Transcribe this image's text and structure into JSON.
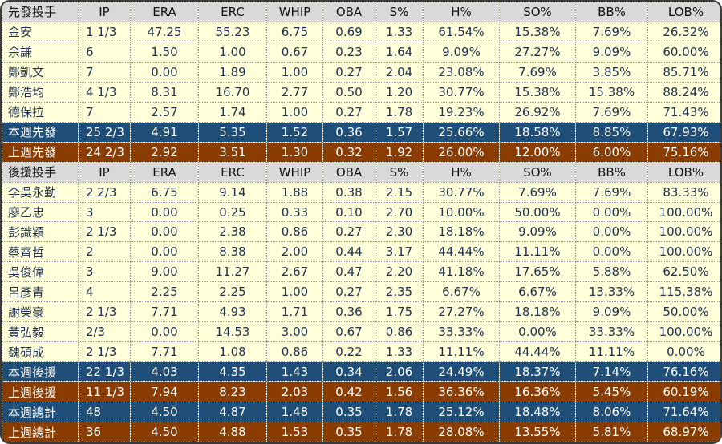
{
  "colors": {
    "page_background": "#ffffff",
    "table_background": "#ffffd9",
    "header_background": "#d9d9d9",
    "this_week_row": "#1f4e79",
    "last_week_row": "#8b3c00",
    "summary_text": "#ffffff",
    "body_text": "#1f3050",
    "grid_line": "#98987e",
    "outer_border": "#3a3a3a"
  },
  "chart_data": {
    "type": "table",
    "title": "",
    "sections": [
      {
        "name": "starting-pitchers",
        "header": [
          "先發投手",
          "IP",
          "ERA",
          "ERC",
          "WHIP",
          "OBA",
          "S%",
          "H%",
          "SO%",
          "BB%",
          "LOB%"
        ],
        "rows": [
          {
            "type": "normal",
            "cells": [
              "金安",
              "1 1/3",
              "47.25",
              "55.23",
              "6.75",
              "0.69",
              "1.33",
              "61.54%",
              "15.38%",
              "7.69%",
              "26.32%"
            ]
          },
          {
            "type": "normal",
            "cells": [
              "余謙",
              "6",
              "1.50",
              "1.00",
              "0.67",
              "0.23",
              "1.64",
              "9.09%",
              "27.27%",
              "9.09%",
              "60.00%"
            ]
          },
          {
            "type": "normal",
            "cells": [
              "鄭凱文",
              "7",
              "0.00",
              "1.89",
              "1.00",
              "0.27",
              "2.04",
              "23.08%",
              "7.69%",
              "3.85%",
              "85.71%"
            ]
          },
          {
            "type": "normal",
            "cells": [
              "鄭浩均",
              "4 1/3",
              "8.31",
              "16.70",
              "2.77",
              "0.50",
              "1.20",
              "30.77%",
              "15.38%",
              "15.38%",
              "88.24%"
            ]
          },
          {
            "type": "normal",
            "cells": [
              "德保拉",
              "7",
              "2.57",
              "1.74",
              "1.00",
              "0.27",
              "1.78",
              "19.23%",
              "26.92%",
              "7.69%",
              "71.43%"
            ]
          },
          {
            "type": "week",
            "cells": [
              "本週先發",
              "25 2/3",
              "4.91",
              "5.35",
              "1.52",
              "0.36",
              "1.57",
              "25.66%",
              "18.58%",
              "8.85%",
              "67.93%"
            ]
          },
          {
            "type": "lastweek",
            "cells": [
              "上週先發",
              "24 2/3",
              "2.92",
              "3.51",
              "1.30",
              "0.32",
              "1.92",
              "26.00%",
              "12.00%",
              "6.00%",
              "75.16%"
            ]
          }
        ]
      },
      {
        "name": "relief-pitchers",
        "header": [
          "後援投手",
          "IP",
          "ERA",
          "ERC",
          "WHIP",
          "OBA",
          "S%",
          "H%",
          "SO%",
          "BB%",
          "LOB%"
        ],
        "rows": [
          {
            "type": "normal",
            "cells": [
              "李吳永勤",
              "2 2/3",
              "6.75",
              "9.14",
              "1.88",
              "0.38",
              "2.15",
              "30.77%",
              "7.69%",
              "7.69%",
              "83.33%"
            ]
          },
          {
            "type": "normal",
            "cells": [
              "廖乙忠",
              "3",
              "0.00",
              "0.25",
              "0.33",
              "0.10",
              "2.70",
              "10.00%",
              "50.00%",
              "0.00%",
              "100.00%"
            ]
          },
          {
            "type": "normal",
            "cells": [
              "彭識穎",
              "2 1/3",
              "0.00",
              "2.38",
              "0.86",
              "0.27",
              "2.30",
              "18.18%",
              "9.09%",
              "0.00%",
              "100.00%"
            ]
          },
          {
            "type": "normal",
            "cells": [
              "蔡齊哲",
              "2",
              "0.00",
              "8.38",
              "2.00",
              "0.44",
              "3.17",
              "44.44%",
              "11.11%",
              "0.00%",
              "100.00%"
            ]
          },
          {
            "type": "normal",
            "cells": [
              "吳俊偉",
              "3",
              "9.00",
              "11.27",
              "2.67",
              "0.47",
              "2.20",
              "41.18%",
              "17.65%",
              "5.88%",
              "62.50%"
            ]
          },
          {
            "type": "normal",
            "cells": [
              "呂彥青",
              "4",
              "2.25",
              "2.25",
              "1.00",
              "0.27",
              "2.35",
              "6.67%",
              "6.67%",
              "13.33%",
              "115.38%"
            ]
          },
          {
            "type": "normal",
            "cells": [
              "謝榮豪",
              "2 1/3",
              "7.71",
              "4.93",
              "1.71",
              "0.36",
              "1.75",
              "27.27%",
              "18.18%",
              "9.09%",
              "50.00%"
            ]
          },
          {
            "type": "normal",
            "cells": [
              "黃弘毅",
              "2/3",
              "0.00",
              "14.53",
              "3.00",
              "0.67",
              "0.86",
              "33.33%",
              "0.00%",
              "33.33%",
              "100.00%"
            ]
          },
          {
            "type": "normal",
            "cells": [
              "魏碩成",
              "2 1/3",
              "7.71",
              "1.08",
              "0.86",
              "0.22",
              "1.33",
              "11.11%",
              "44.44%",
              "11.11%",
              "0.00%"
            ]
          },
          {
            "type": "week",
            "cells": [
              "本週後援",
              "22 1/3",
              "4.03",
              "4.35",
              "1.43",
              "0.34",
              "2.06",
              "24.49%",
              "18.37%",
              "7.14%",
              "76.16%"
            ]
          },
          {
            "type": "lastweek",
            "cells": [
              "上週後援",
              "11 1/3",
              "7.94",
              "8.23",
              "2.03",
              "0.42",
              "1.56",
              "36.36%",
              "16.36%",
              "5.45%",
              "60.19%"
            ]
          },
          {
            "type": "week",
            "cells": [
              "本週總計",
              "48",
              "4.50",
              "4.87",
              "1.48",
              "0.35",
              "1.78",
              "25.12%",
              "18.48%",
              "8.06%",
              "71.64%"
            ]
          },
          {
            "type": "lastweek",
            "cells": [
              "上週總計",
              "36",
              "4.50",
              "4.88",
              "1.53",
              "0.35",
              "1.78",
              "28.08%",
              "13.55%",
              "5.81%",
              "68.97%"
            ]
          }
        ]
      }
    ]
  }
}
